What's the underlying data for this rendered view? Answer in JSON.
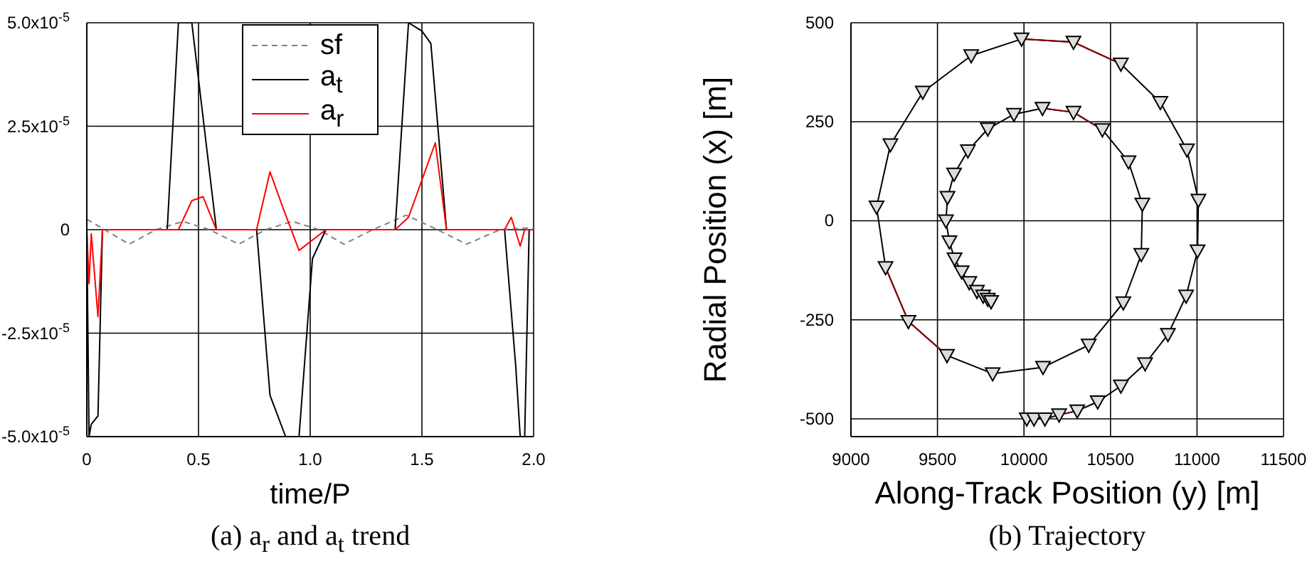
{
  "chart_data": [
    {
      "type": "line",
      "title": "(a) a$_{r}$ and a$_{t}$ trend",
      "xlabel": "time/P",
      "xlim": [
        0,
        2
      ],
      "xticks": [
        0,
        0.5,
        {
          "value": 1,
          "label": "1.0"
        },
        1.5,
        {
          "value": 2,
          "label": "2.0"
        }
      ],
      "ylim": [
        -5e-05,
        5e-05
      ],
      "yticks": [
        {
          "value": -5e-05,
          "label": "-5.0x10$^{-5}$"
        },
        {
          "value": -2.5e-05,
          "label": "-2.5x10$^{-5}$"
        },
        0,
        {
          "value": 2.5e-05,
          "label": "2.5x10$^{-5}$"
        },
        {
          "value": 5e-05,
          "label": "5.0x10$^{-5}$"
        }
      ],
      "grid": true,
      "legend": "top",
      "marker": "none",
      "series": [
        {
          "name": "sf",
          "color": "#808080",
          "line_style": "dashed",
          "x": [
            0,
            0.08,
            0.19,
            0.31,
            0.43,
            0.55,
            0.68,
            0.8,
            0.92,
            1.04,
            1.15,
            1.28,
            1.43,
            1.57,
            1.7,
            1.85,
            2
          ],
          "values": [
            2.5e-06,
            0,
            -3.5e-06,
            0,
            2e-06,
            0,
            -3.5e-06,
            0,
            2e-06,
            0,
            -3.5e-06,
            0,
            3.5e-06,
            0,
            -3.5e-06,
            0,
            5e-07
          ]
        },
        {
          "name": "a$_{t}$",
          "color": "#000000",
          "line_style": "solid",
          "x": [
            0,
            0.01,
            0.02,
            0.05,
            0.07,
            0.36,
            0.41,
            0.47,
            0.58,
            0.76,
            0.82,
            0.89,
            0.95,
            1.01,
            1.07,
            1.38,
            1.44,
            1.5,
            1.54,
            1.61,
            1.87,
            1.92,
            1.94,
            1.96,
            1.98,
            2
          ],
          "values": [
            0,
            -5e-05,
            -4.7e-05,
            -4.5e-05,
            0,
            0,
            5e-05,
            5e-05,
            0,
            0,
            -4e-05,
            -5e-05,
            -5e-05,
            -7e-06,
            0,
            0,
            5e-05,
            4.8e-05,
            4.5e-05,
            0,
            0,
            -3.3e-05,
            -5e-05,
            -5e-05,
            0,
            0
          ]
        },
        {
          "name": "a$_{r}$",
          "color": "#ff0000",
          "line_style": "solid",
          "x": [
            0,
            0.01,
            0.02,
            0.05,
            0.07,
            0.41,
            0.47,
            0.52,
            0.58,
            0.76,
            0.82,
            0.88,
            0.95,
            1.07,
            1.38,
            1.44,
            1.5,
            1.56,
            1.61,
            1.87,
            1.9,
            1.94,
            1.96,
            2
          ],
          "values": [
            0,
            -1.3e-05,
            -1e-06,
            -2.1e-05,
            0,
            0,
            7e-06,
            8e-06,
            0,
            0,
            1.4e-05,
            5e-06,
            -5e-06,
            0,
            0,
            3e-06,
            1.2e-05,
            2.1e-05,
            0,
            0,
            3e-06,
            -4e-06,
            0,
            0
          ]
        }
      ]
    },
    {
      "type": "line",
      "title": "(b) Trajectory",
      "xlabel": "Along-Track Position (y) [m]",
      "ylabel": "Radial Position (x) [m]",
      "xlim": [
        9000,
        11500
      ],
      "xticks": [
        9000,
        9500,
        10000,
        10500,
        11000,
        11500
      ],
      "ylim": [
        -545,
        500
      ],
      "yticks": [
        -500,
        -250,
        0,
        250,
        500
      ],
      "grid": true,
      "series": [
        {
          "color": "#000000",
          "marker": "triangle",
          "line_style": "solid",
          "x": [
            10016,
            10058,
            10121,
            10203,
            10308,
            10426,
            10560,
            10700,
            10832,
            10937,
            11003,
            11008,
            10942,
            10788,
            10560,
            10286,
            9986,
            9695,
            9415,
            9228,
            9148,
            9200,
            9332,
            9555,
            9819,
            10110,
            10374,
            10574,
            10678,
            10684,
            10604,
            10453,
            10286,
            10107,
            9942,
            9791,
            9676,
            9596,
            9558,
            9549,
            9569,
            9599,
            9640,
            9684,
            9728,
            9764,
            9791,
            9810
          ],
          "values": [
            -500,
            -500,
            -500,
            -490,
            -480,
            -457,
            -417,
            -361,
            -287,
            -190,
            -76,
            52,
            179,
            299,
            396,
            451,
            459,
            417,
            325,
            192,
            35,
            -118,
            -254,
            -340,
            -386,
            -370,
            -314,
            -207,
            -85,
            42,
            149,
            230,
            274,
            284,
            269,
            232,
            177,
            118,
            59,
            0,
            -53,
            -96,
            -129,
            -156,
            -178,
            -190,
            -198,
            -204
          ]
        },
        {
          "color": "#8b0000",
          "marker": "none",
          "line_style": "solid",
          "x": [
            10203,
            10308,
            null,
            9986,
            10286,
            10560,
            null,
            9200,
            9332,
            9555,
            null,
            10107,
            10286,
            10453,
            null,
            9599,
            9640
          ],
          "values": [
            -490,
            -480,
            null,
            459,
            451,
            396,
            null,
            -118,
            -254,
            -340,
            null,
            284,
            274,
            230,
            null,
            -96,
            -129
          ]
        }
      ]
    }
  ]
}
